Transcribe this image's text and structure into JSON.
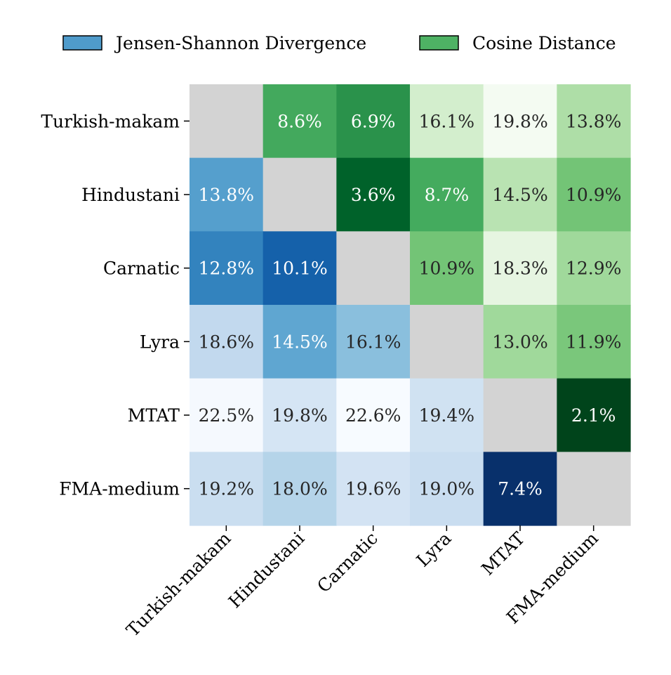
{
  "chart_data": {
    "type": "heatmap",
    "title": "",
    "xlabel": "",
    "ylabel": "",
    "grid": false,
    "legend_placement": "top",
    "legend": [
      {
        "label": "Jensen-Shannon Divergence",
        "color": "#4f9bcb",
        "region": "lower-triangle",
        "colormap": "Blues"
      },
      {
        "label": "Cosine Distance",
        "color": "#4eb264",
        "region": "upper-triangle",
        "colormap": "Greens"
      }
    ],
    "diagonal_color": "#d3d3d3",
    "rows": [
      "Turkish-makam",
      "Hindustani",
      "Carnatic",
      "Lyra",
      "MTAT",
      "FMA-medium"
    ],
    "cols": [
      "Turkish-makam",
      "Hindustani",
      "Carnatic",
      "Lyra",
      "MTAT",
      "FMA-medium"
    ],
    "values": [
      [
        null,
        8.6,
        6.9,
        16.1,
        19.8,
        13.8
      ],
      [
        13.8,
        null,
        3.6,
        8.7,
        14.5,
        10.9
      ],
      [
        12.8,
        10.1,
        null,
        10.9,
        18.3,
        12.9
      ],
      [
        18.6,
        14.5,
        16.1,
        null,
        13.0,
        11.9
      ],
      [
        22.5,
        19.8,
        22.6,
        19.4,
        null,
        2.1
      ],
      [
        19.2,
        18.0,
        19.6,
        19.0,
        7.4,
        null
      ]
    ],
    "labels": [
      [
        "",
        "8.6%",
        "6.9%",
        "16.1%",
        "19.8%",
        "13.8%"
      ],
      [
        "13.8%",
        "",
        "3.6%",
        "8.7%",
        "14.5%",
        "10.9%"
      ],
      [
        "12.8%",
        "10.1%",
        "",
        "10.9%",
        "18.3%",
        "12.9%"
      ],
      [
        "18.6%",
        "14.5%",
        "16.1%",
        "",
        "13.0%",
        "11.9%"
      ],
      [
        "22.5%",
        "19.8%",
        "22.6%",
        "19.4%",
        "",
        "2.1%"
      ],
      [
        "19.2%",
        "18.0%",
        "19.6%",
        "19.0%",
        "7.4%",
        ""
      ]
    ],
    "cell_colors": [
      [
        "#d3d3d3",
        "#43a95d",
        "#2a924b",
        "#d3eecd",
        "#f4fbf2",
        "#aedea7"
      ],
      [
        "#559fcd",
        "#d3d3d3",
        "#00622a",
        "#44ab5e",
        "#b9e3b2",
        "#73c476"
      ],
      [
        "#3383be",
        "#1561aa",
        "#d3d3d3",
        "#73c476",
        "#e6f5e1",
        "#a0d99b"
      ],
      [
        "#c2d9ee",
        "#5fa6d1",
        "#8abfdd",
        "#d3d3d3",
        "#a0d99b",
        "#7ac77b"
      ],
      [
        "#f5f9fe",
        "#d5e5f4",
        "#f7fbff",
        "#d0e2f2",
        "#d3d3d3",
        "#00441b"
      ],
      [
        "#cadef0",
        "#b5d4e9",
        "#d3e3f3",
        "#c9ddf0",
        "#08306b",
        "#d3d3d3"
      ]
    ],
    "text_colors": [
      [
        "",
        "#ffffff",
        "#ffffff",
        "#262626",
        "#262626",
        "#262626"
      ],
      [
        "#ffffff",
        "",
        "#ffffff",
        "#ffffff",
        "#262626",
        "#262626"
      ],
      [
        "#ffffff",
        "#ffffff",
        "",
        "#262626",
        "#262626",
        "#262626"
      ],
      [
        "#262626",
        "#ffffff",
        "#262626",
        "",
        "#262626",
        "#262626"
      ],
      [
        "#262626",
        "#262626",
        "#262626",
        "#262626",
        "",
        "#ffffff"
      ],
      [
        "#262626",
        "#262626",
        "#262626",
        "#262626",
        "#ffffff",
        ""
      ]
    ]
  }
}
